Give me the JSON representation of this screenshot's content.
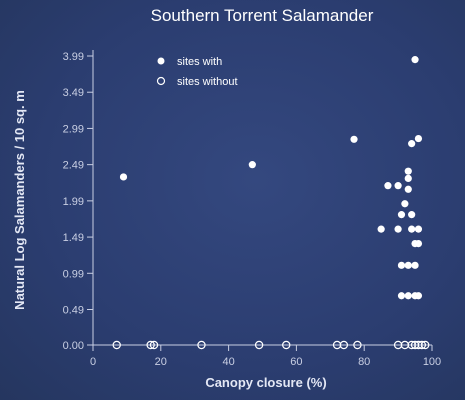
{
  "chart_data": {
    "type": "scatter",
    "title": "Southern Torrent Salamander",
    "xlabel": "Canopy closure (%)",
    "ylabel": "Natural Log Salamanders / 10 sq. m",
    "xlim": [
      0,
      100
    ],
    "ylim": [
      0,
      3.99
    ],
    "x_ticks": [
      "0",
      "20",
      "40",
      "60",
      "80",
      "100"
    ],
    "y_ticks": [
      "0.00",
      "0.49",
      "0.99",
      "1.49",
      "1.99",
      "2.49",
      "2.99",
      "3.49",
      "3.99"
    ],
    "grid": false,
    "legend": {
      "placement": "top-left",
      "entries": [
        "sites with",
        "sites without"
      ]
    },
    "colors": {
      "axis": "#c9cfe3",
      "marker_fill": "#ffffff",
      "background": "#2d3f73"
    },
    "series": [
      {
        "name": "sites with",
        "marker": "filled",
        "points": [
          {
            "x": 9,
            "y": 2.32
          },
          {
            "x": 47,
            "y": 2.49
          },
          {
            "x": 77,
            "y": 2.84
          },
          {
            "x": 85,
            "y": 1.6
          },
          {
            "x": 87,
            "y": 2.2
          },
          {
            "x": 90,
            "y": 2.2
          },
          {
            "x": 90,
            "y": 1.6
          },
          {
            "x": 91,
            "y": 1.1
          },
          {
            "x": 91,
            "y": 0.68
          },
          {
            "x": 91,
            "y": 1.8
          },
          {
            "x": 92,
            "y": 1.95
          },
          {
            "x": 93,
            "y": 2.4
          },
          {
            "x": 93,
            "y": 2.3
          },
          {
            "x": 93,
            "y": 2.15
          },
          {
            "x": 93,
            "y": 1.1
          },
          {
            "x": 93,
            "y": 0.68
          },
          {
            "x": 94,
            "y": 2.78
          },
          {
            "x": 94,
            "y": 1.6
          },
          {
            "x": 94,
            "y": 1.8
          },
          {
            "x": 95,
            "y": 1.1
          },
          {
            "x": 95,
            "y": 1.4
          },
          {
            "x": 95,
            "y": 0.68
          },
          {
            "x": 95,
            "y": 3.94
          },
          {
            "x": 96,
            "y": 1.6
          },
          {
            "x": 96,
            "y": 1.4
          },
          {
            "x": 96,
            "y": 2.85
          },
          {
            "x": 96,
            "y": 0.68
          }
        ]
      },
      {
        "name": "sites without",
        "marker": "open",
        "points": [
          {
            "x": 7,
            "y": 0
          },
          {
            "x": 17,
            "y": 0
          },
          {
            "x": 18,
            "y": 0
          },
          {
            "x": 32,
            "y": 0
          },
          {
            "x": 49,
            "y": 0
          },
          {
            "x": 57,
            "y": 0
          },
          {
            "x": 72,
            "y": 0
          },
          {
            "x": 74,
            "y": 0
          },
          {
            "x": 78,
            "y": 0
          },
          {
            "x": 90,
            "y": 0
          },
          {
            "x": 92,
            "y": 0
          },
          {
            "x": 94,
            "y": 0
          },
          {
            "x": 95,
            "y": 0
          },
          {
            "x": 96,
            "y": 0
          },
          {
            "x": 97,
            "y": 0
          },
          {
            "x": 98,
            "y": 0
          }
        ]
      }
    ]
  }
}
